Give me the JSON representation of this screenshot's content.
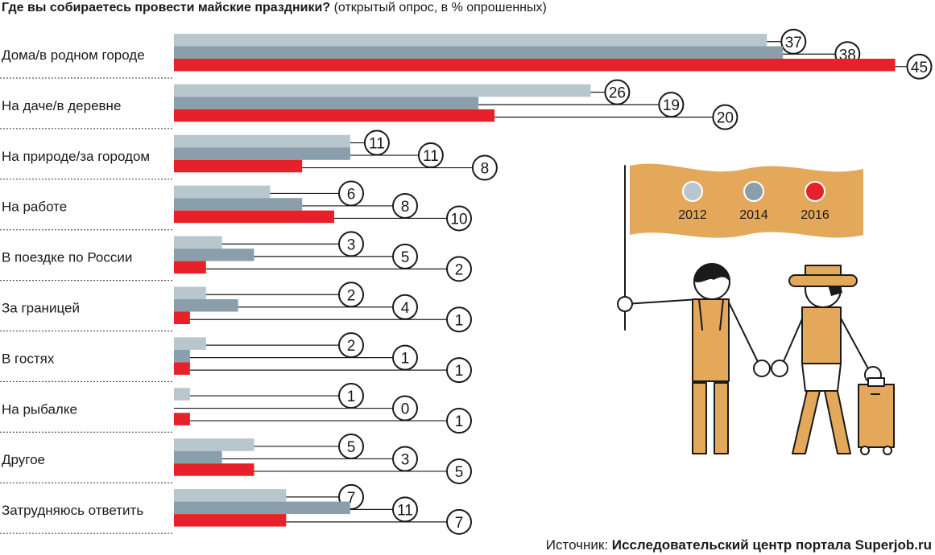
{
  "title": {
    "main": "Где вы собираетесь провести майские праздники?",
    "sub": "(открытый опрос, в % опрошенных)"
  },
  "source": {
    "prefix": "Источник:",
    "name": "Исследовательский центр портала Superjob.ru"
  },
  "colors": {
    "2012": "#b8c6cd",
    "2014": "#8a9fab",
    "2016": "#e8202a",
    "flag": "#e3a85a"
  },
  "chart_data": {
    "type": "bar",
    "orientation": "horizontal",
    "title": "Где вы собираетесь провести майские праздники?",
    "subtitle": "(открытый опрос, в % опрошенных)",
    "categories": [
      "Дома/в родном городе",
      "На даче/в деревне",
      "На природе/за городом",
      "На работе",
      "В поездке по России",
      "За границей",
      "В гостях",
      "На рыбалке",
      "Другое",
      "Затрудняюсь ответить"
    ],
    "series": [
      {
        "name": "2012",
        "values": [
          37,
          26,
          11,
          6,
          3,
          2,
          2,
          1,
          5,
          7
        ]
      },
      {
        "name": "2014",
        "values": [
          38,
          19,
          11,
          8,
          5,
          4,
          1,
          0,
          3,
          11
        ]
      },
      {
        "name": "2016",
        "values": [
          45,
          20,
          8,
          10,
          2,
          1,
          1,
          1,
          5,
          7
        ]
      }
    ],
    "legend_position": "right"
  }
}
